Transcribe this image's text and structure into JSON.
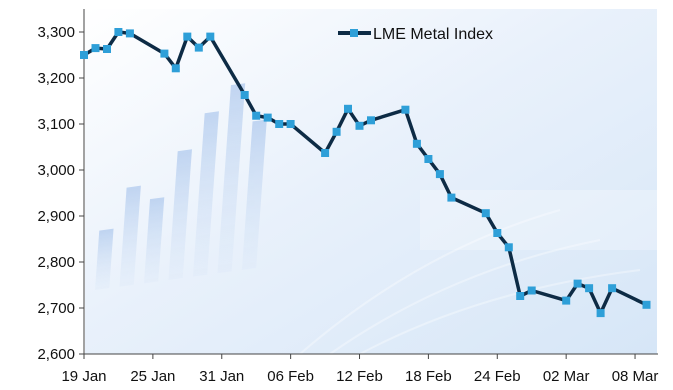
{
  "chart_data": {
    "type": "line",
    "title": "",
    "xlabel": "",
    "ylabel": "",
    "x_tick_labels": [
      "19 Jan",
      "25 Jan",
      "31 Jan",
      "06 Feb",
      "12 Feb",
      "18 Feb",
      "24 Feb",
      "02 Mar",
      "08 Mar"
    ],
    "ylim": [
      2600,
      3350
    ],
    "y_ticks": [
      2600,
      2700,
      2800,
      2900,
      3000,
      3100,
      3200,
      3300
    ],
    "y_tick_labels": [
      "2,600",
      "2,700",
      "2,800",
      "2,900",
      "3,000",
      "3,100",
      "3,200",
      "3,300"
    ],
    "grid": false,
    "legend_position": "top-right",
    "series": [
      {
        "name": "LME Metal Index",
        "color": "#0d2b45",
        "marker_color": "#2e9fd8",
        "x": [
          "2015-01-19",
          "2015-01-20",
          "2015-01-21",
          "2015-01-22",
          "2015-01-23",
          "2015-01-26",
          "2015-01-27",
          "2015-01-28",
          "2015-01-29",
          "2015-01-30",
          "2015-02-02",
          "2015-02-03",
          "2015-02-04",
          "2015-02-05",
          "2015-02-06",
          "2015-02-09",
          "2015-02-10",
          "2015-02-11",
          "2015-02-12",
          "2015-02-13",
          "2015-02-16",
          "2015-02-17",
          "2015-02-18",
          "2015-02-19",
          "2015-02-20",
          "2015-02-23",
          "2015-02-24",
          "2015-02-25",
          "2015-02-26",
          "2015-02-27",
          "2015-03-02",
          "2015-03-03",
          "2015-03-04",
          "2015-03-05",
          "2015-03-06",
          "2015-03-09"
        ],
        "values": [
          3250,
          3265,
          3263,
          3300,
          3297,
          3253,
          3221,
          3290,
          3266,
          3290,
          3163,
          3118,
          3114,
          3100,
          3100,
          3037,
          3083,
          3133,
          3096,
          3108,
          3131,
          3057,
          3024,
          2991,
          2940,
          2906,
          2863,
          2832,
          2726,
          2738,
          2716,
          2753,
          2743,
          2689,
          2743,
          2707
        ]
      }
    ]
  }
}
